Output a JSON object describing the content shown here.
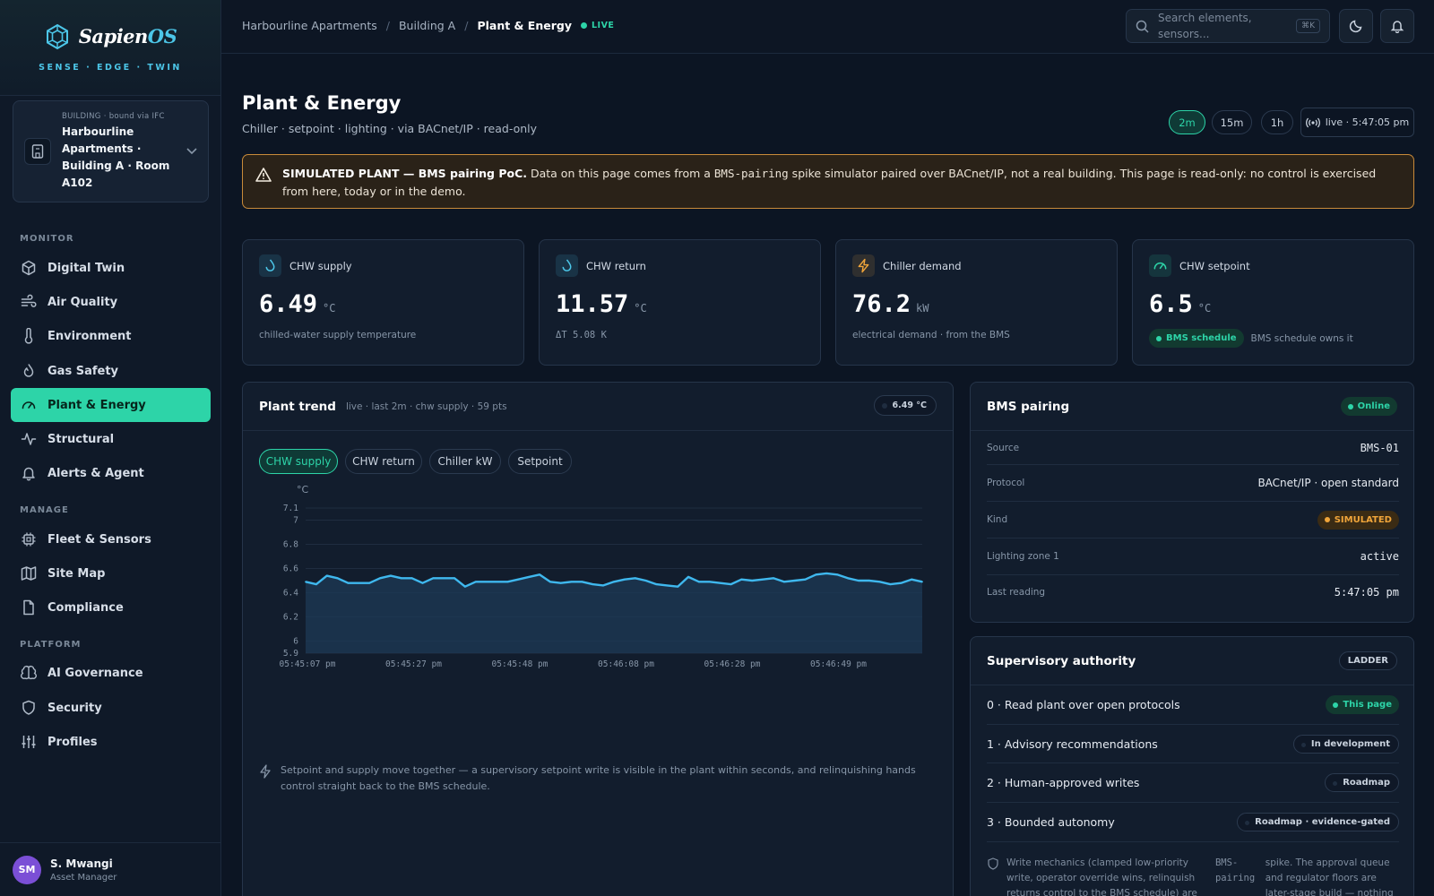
{
  "brand": {
    "name_main": "Sapien",
    "name_accent": "OS",
    "tagline": "SENSE · EDGE · TWIN"
  },
  "building": {
    "label": "BUILDING · bound via IFC",
    "name": "Harbourline Apartments · Building A · Room A102"
  },
  "nav": {
    "monitor_label": "MONITOR",
    "manage_label": "MANAGE",
    "platform_label": "PLATFORM",
    "monitor": [
      {
        "label": "Digital Twin",
        "icon": "cube-icon"
      },
      {
        "label": "Air Quality",
        "icon": "wind-icon"
      },
      {
        "label": "Environment",
        "icon": "thermometer-icon"
      },
      {
        "label": "Gas Safety",
        "icon": "flame-icon"
      },
      {
        "label": "Plant & Energy",
        "icon": "gauge-icon",
        "active": true
      },
      {
        "label": "Structural",
        "icon": "activity-icon"
      },
      {
        "label": "Alerts & Agent",
        "icon": "bell-icon"
      }
    ],
    "manage": [
      {
        "label": "Fleet & Sensors",
        "icon": "chip-icon"
      },
      {
        "label": "Site Map",
        "icon": "map-icon"
      },
      {
        "label": "Compliance",
        "icon": "document-icon"
      }
    ],
    "platform": [
      {
        "label": "AI Governance",
        "icon": "brain-icon"
      },
      {
        "label": "Security",
        "icon": "shield-icon"
      },
      {
        "label": "Profiles",
        "icon": "sliders-icon"
      }
    ]
  },
  "user": {
    "initials": "SM",
    "name": "S. Mwangi",
    "role": "Asset Manager"
  },
  "topbar": {
    "crumbs": [
      "Harbourline Apartments",
      "Building A",
      "Plant & Energy"
    ],
    "sep": "/",
    "live": "LIVE",
    "search_placeholder": "Search elements, sensors...",
    "shortcut": "⌘K"
  },
  "page": {
    "title": "Plant & Energy",
    "subtitle": "Chiller · setpoint · lighting · via BACnet/IP · read-only",
    "ranges": [
      "2m",
      "15m",
      "1h"
    ],
    "active_range": "2m",
    "live_status": "live · 5:47:05 pm"
  },
  "banner": {
    "bold": "SIMULATED PLANT — BMS pairing PoC.",
    "pre": " Data on this page comes from a ",
    "code": "BMS-pairing",
    "post": " spike simulator paired over BACnet/IP, not a real building. This page is read-only: no control is exercised from here, today or in the demo."
  },
  "kpis": [
    {
      "label": "CHW supply",
      "value": "6.49",
      "unit": "°C",
      "note": "chilled-water supply temperature",
      "icon": "droplet-icon",
      "color": "#4cc6e8"
    },
    {
      "label": "CHW return",
      "value": "11.57",
      "unit": "°C",
      "note": "ΔT 5.08 K",
      "icon": "droplet-icon",
      "color": "#4cc6e8"
    },
    {
      "label": "Chiller demand",
      "value": "76.2",
      "unit": "kW",
      "note": "electrical demand · from the BMS",
      "icon": "bolt-icon",
      "color": "#f0a53a"
    },
    {
      "label": "CHW setpoint",
      "value": "6.5",
      "unit": "°C",
      "badge": "BMS schedule",
      "note": "BMS schedule owns it",
      "icon": "gauge-icon",
      "color": "#2dd4a8"
    }
  ],
  "trend": {
    "title": "Plant trend",
    "meta": "live · last 2m · chw supply · 59 pts",
    "current": "6.49 °C",
    "tabs": [
      "CHW supply",
      "CHW return",
      "Chiller kW",
      "Setpoint"
    ],
    "active_tab": "CHW supply",
    "note": "Setpoint and supply move together — a supervisory setpoint write is visible in the plant within seconds, and relinquishing hands control straight back to the BMS schedule."
  },
  "chart_data": {
    "type": "area",
    "ylabel": "°C",
    "ylim": [
      5.9,
      7.1
    ],
    "yticks": [
      5.9,
      6,
      6.2,
      6.4,
      6.6,
      6.8,
      7,
      7.1
    ],
    "xticks": [
      "05:45:07 pm",
      "05:45:27 pm",
      "05:45:48 pm",
      "05:46:08 pm",
      "05:46:28 pm",
      "05:46:49 pm"
    ],
    "color": "#3fb8ee",
    "series": [
      {
        "values": [
          6.49,
          6.47,
          6.54,
          6.52,
          6.48,
          6.48,
          6.48,
          6.52,
          6.54,
          6.52,
          6.52,
          6.48,
          6.52,
          6.52,
          6.52,
          6.45,
          6.49,
          6.49,
          6.49,
          6.49,
          6.51,
          6.53,
          6.55,
          6.49,
          6.48,
          6.49,
          6.49,
          6.47,
          6.46,
          6.49,
          6.51,
          6.52,
          6.5,
          6.47,
          6.46,
          6.45,
          6.53,
          6.49,
          6.49,
          6.48,
          6.47,
          6.51,
          6.5,
          6.51,
          6.52,
          6.49,
          6.5,
          6.51,
          6.55,
          6.56,
          6.55,
          6.52,
          6.5,
          6.5,
          6.49,
          6.47,
          6.48,
          6.51,
          6.49
        ]
      }
    ]
  },
  "bms": {
    "title": "BMS pairing",
    "status": "Online",
    "rows": [
      {
        "k": "Source",
        "v": "BMS-01"
      },
      {
        "k": "Protocol",
        "v": "BACnet/IP · open standard"
      },
      {
        "k": "Kind",
        "v": "SIMULATED"
      },
      {
        "k": "Lighting zone 1",
        "v": "active"
      },
      {
        "k": "Last reading",
        "v": "5:47:05 pm"
      }
    ]
  },
  "authority": {
    "title": "Supervisory authority",
    "tag": "LADDER",
    "rows": [
      {
        "label": "0 · Read plant over open protocols",
        "status": "This page"
      },
      {
        "label": "1 · Advisory recommendations",
        "status": "In development"
      },
      {
        "label": "2 · Human-approved writes",
        "status": "Roadmap"
      },
      {
        "label": "3 · Bounded autonomy",
        "status": "Roadmap · evidence-gated"
      }
    ],
    "footer_a": "Write mechanics (clamped low-priority write, operator override wins, relinquish returns control to the BMS schedule) are",
    "footer_code": "BMS-pairing",
    "footer_b": "spike. The approval queue and regulator floors are later-stage build — nothing"
  }
}
